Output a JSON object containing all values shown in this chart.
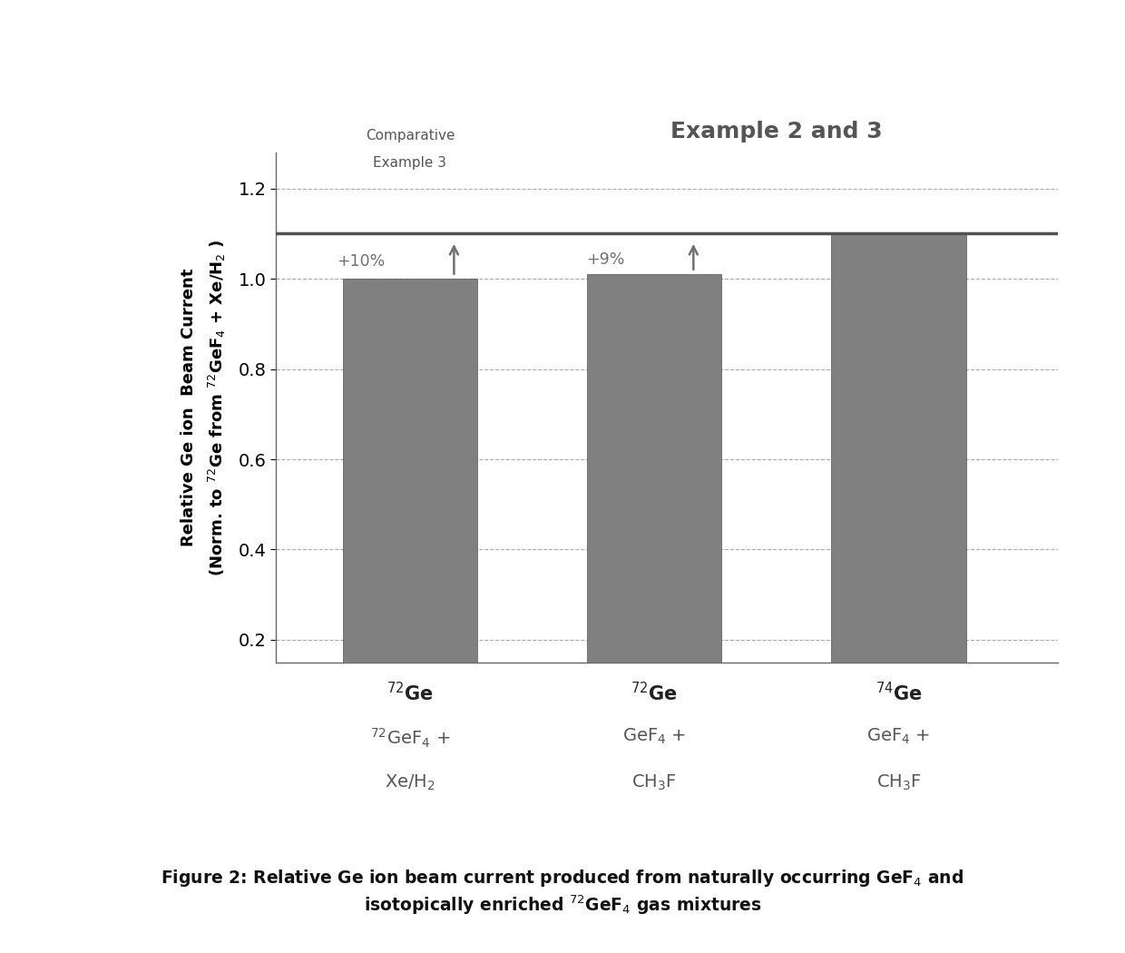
{
  "bar_values": [
    1.0,
    1.01,
    1.1
  ],
  "bar_positions": [
    1,
    2,
    3
  ],
  "bar_width": 0.55,
  "ylim": [
    0.15,
    1.28
  ],
  "yticks": [
    0.2,
    0.4,
    0.6,
    0.8,
    1.0,
    1.2
  ],
  "reference_line": 1.1,
  "bar_color_hex": "#808080",
  "bar_edge_color": "#555555",
  "grid_color": "#aaaaaa",
  "annotation_color": "#707070",
  "ref_line_color": "#505050",
  "background_color": "#ffffff",
  "xlim": [
    0.45,
    3.65
  ],
  "comp_example_label_line1": "Comparative",
  "comp_example_label_line2": "Example 3",
  "example_label": "Example 2 and 3",
  "ylabel_line1": "Relative Ge ion  Beam Current",
  "ylabel_line2": "(Norm. to $^{72}$Ge from $^{72}$GeF$_4$ + Xe/H$_2$ )",
  "xlabel_labels": [
    {
      "line1": "$^{72}$Ge",
      "line2": "$^{72}$GeF$_4$ +",
      "line3": "Xe/H$_2$"
    },
    {
      "line1": "$^{72}$Ge",
      "line2": "GeF$_4$ +",
      "line3": "CH$_3$F"
    },
    {
      "line1": "$^{74}$Ge",
      "line2": "GeF$_4$ +",
      "line3": "CH$_3$F"
    }
  ],
  "ann1_text": "+10%",
  "ann2_text": "+9%",
  "fig_caption1": "Figure 2: Relative Ge ion beam current produced from naturally occurring GeF$_4$ and",
  "fig_caption2": "isotopically enriched $^{72}$GeF$_4$ gas mixtures"
}
